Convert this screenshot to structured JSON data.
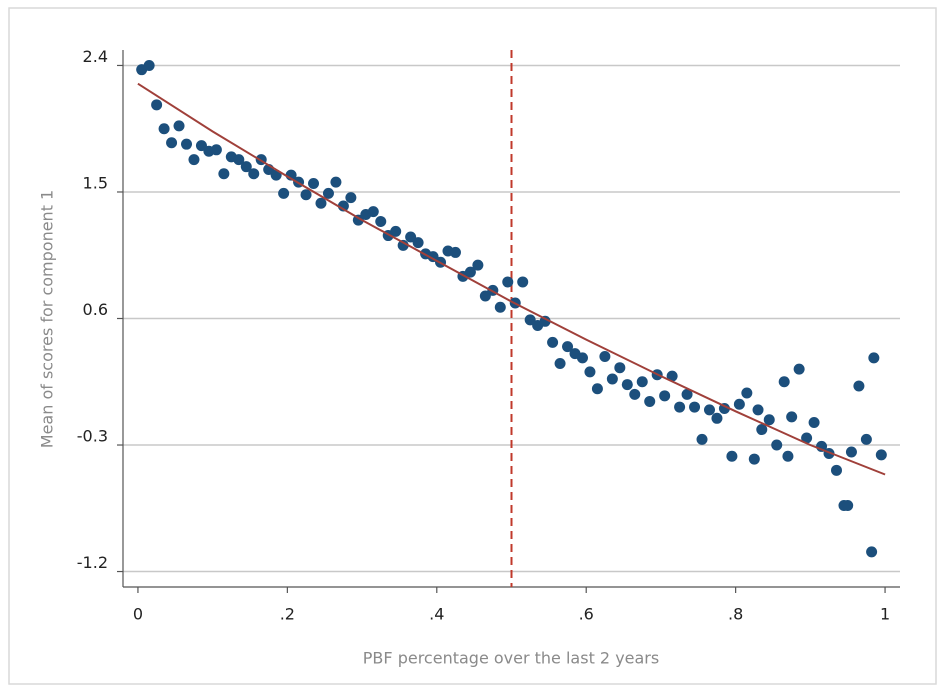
{
  "chart_data": {
    "type": "scatter",
    "x_label": "PBF percentage over the last 2 years",
    "y_label": "Mean of scores for component 1",
    "xlim": [
      -0.02,
      1.02
    ],
    "ylim": [
      -1.31,
      2.51
    ],
    "xticks": [
      0,
      {
        "value": 0.2,
        "label": ".2"
      },
      {
        "value": 0.4,
        "label": ".4"
      },
      {
        "value": 0.6,
        "label": ".6"
      },
      {
        "value": 0.8,
        "label": ".8"
      },
      1
    ],
    "yticks": [
      2.4,
      1.5,
      0.6,
      -0.3,
      -1.2
    ],
    "grid": true,
    "vline": {
      "x": 0.5,
      "color": "#c0392b",
      "dashed": true
    },
    "series": [
      {
        "type": "scatter",
        "color": "#1c4f7c",
        "x": [
          0.005,
          0.015,
          0.025,
          0.035,
          0.045,
          0.055,
          0.065,
          0.075,
          0.085,
          0.095,
          0.105,
          0.115,
          0.125,
          0.135,
          0.145,
          0.155,
          0.165,
          0.175,
          0.185,
          0.195,
          0.205,
          0.215,
          0.225,
          0.235,
          0.245,
          0.255,
          0.265,
          0.275,
          0.285,
          0.295,
          0.305,
          0.315,
          0.325,
          0.335,
          0.345,
          0.355,
          0.365,
          0.375,
          0.385,
          0.395,
          0.405,
          0.415,
          0.425,
          0.435,
          0.445,
          0.455,
          0.465,
          0.475,
          0.485,
          0.495,
          0.505,
          0.515,
          0.525,
          0.535,
          0.545,
          0.555,
          0.565,
          0.575,
          0.585,
          0.595,
          0.605,
          0.615,
          0.625,
          0.635,
          0.645,
          0.655,
          0.665,
          0.675,
          0.685,
          0.695,
          0.705,
          0.715,
          0.725,
          0.735,
          0.745,
          0.755,
          0.765,
          0.775,
          0.785,
          0.795,
          0.805,
          0.815,
          0.825,
          0.835,
          0.845,
          0.855,
          0.865,
          0.875,
          0.885,
          0.895,
          0.905,
          0.915,
          0.925,
          0.935,
          0.945,
          0.955,
          0.965,
          0.975,
          0.985,
          0.995,
          0.982,
          0.95,
          0.83,
          0.87
        ],
        "values": [
          2.37,
          2.4,
          2.12,
          1.95,
          1.85,
          1.97,
          1.84,
          1.73,
          1.83,
          1.79,
          1.8,
          1.63,
          1.75,
          1.73,
          1.68,
          1.63,
          1.73,
          1.66,
          1.62,
          1.49,
          1.62,
          1.57,
          1.48,
          1.56,
          1.42,
          1.49,
          1.57,
          1.4,
          1.46,
          1.3,
          1.34,
          1.36,
          1.29,
          1.19,
          1.22,
          1.12,
          1.18,
          1.14,
          1.06,
          1.04,
          1.0,
          1.08,
          1.07,
          0.9,
          0.93,
          0.98,
          0.76,
          0.8,
          0.68,
          0.86,
          0.71,
          0.86,
          0.59,
          0.55,
          0.58,
          0.43,
          0.28,
          0.4,
          0.35,
          0.32,
          0.22,
          0.1,
          0.33,
          0.17,
          0.25,
          0.13,
          0.06,
          0.15,
          0.01,
          0.2,
          0.05,
          0.19,
          -0.03,
          0.06,
          -0.03,
          -0.26,
          -0.05,
          -0.11,
          -0.04,
          -0.38,
          -0.01,
          0.07,
          -0.4,
          -0.19,
          -0.12,
          -0.3,
          0.15,
          -0.1,
          0.24,
          -0.25,
          -0.14,
          -0.31,
          -0.36,
          -0.48,
          -0.73,
          -0.35,
          0.12,
          -0.26,
          0.32,
          -0.37,
          -1.06,
          -0.73,
          -0.05,
          -0.38
        ]
      },
      {
        "type": "line",
        "color": "#a0403a",
        "x": [
          0,
          0.1,
          0.2,
          0.3,
          0.4,
          0.5,
          0.6,
          0.7,
          0.8,
          0.9,
          1
        ],
        "values": [
          2.27,
          1.93,
          1.61,
          1.3,
          1.01,
          0.72,
          0.45,
          0.19,
          -0.06,
          -0.3,
          -0.51
        ]
      }
    ]
  }
}
